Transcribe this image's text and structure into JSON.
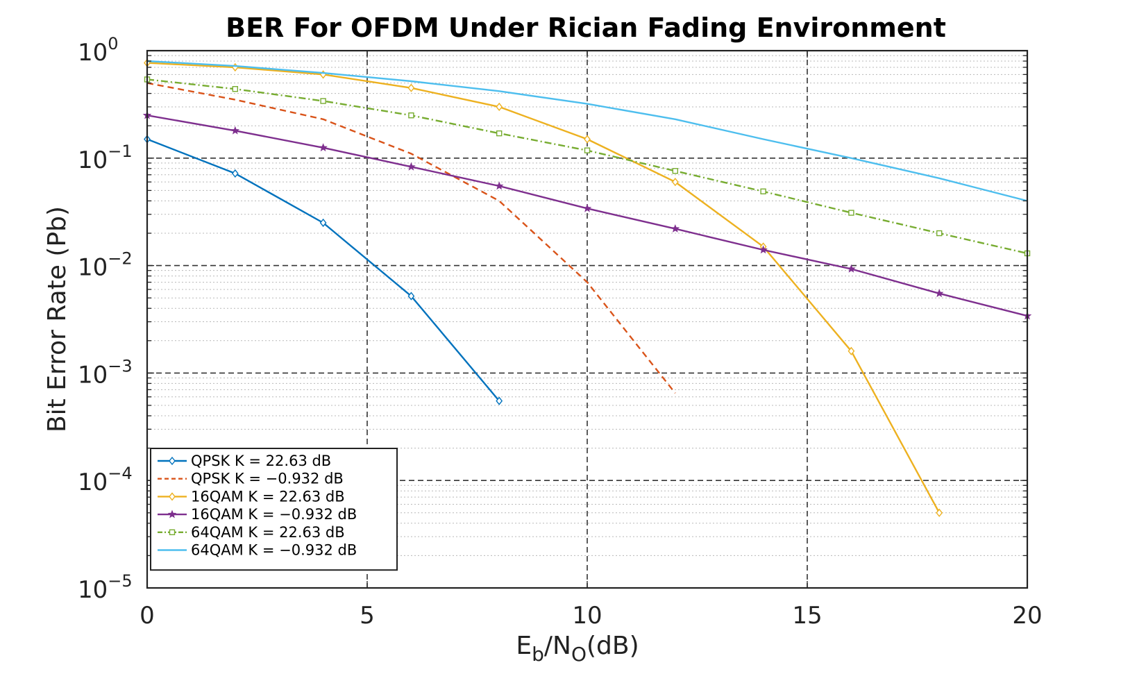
{
  "chart_data": {
    "type": "line",
    "title": "BER For OFDM Under Rician Fading Environment",
    "xlabel": {
      "base1": "E",
      "sub1": "b",
      "mid": "/N",
      "sub2": "O",
      "tail": "(dB)"
    },
    "ylabel": "Bit Error Rate (Pb)",
    "xlim": [
      0,
      20
    ],
    "ylim": [
      1e-05,
      1
    ],
    "yscale": "log",
    "x_ticks": [
      "0",
      "5",
      "10",
      "15",
      "20"
    ],
    "y_ticks": [
      {
        "base": "10",
        "exp": "0"
      },
      {
        "base": "10",
        "exp": "−1"
      },
      {
        "base": "10",
        "exp": "−2"
      },
      {
        "base": "10",
        "exp": "−3"
      },
      {
        "base": "10",
        "exp": "−4"
      },
      {
        "base": "10",
        "exp": "−5"
      }
    ],
    "grid": true,
    "legend_position": "bottom-left",
    "series": [
      {
        "name": "QPSK K = 22.63 dB",
        "color": "#0072BD",
        "dash": "solid",
        "marker": "diamond",
        "x": [
          0,
          2,
          4,
          6,
          8
        ],
        "y": [
          0.15,
          0.072,
          0.025,
          0.0052,
          0.00055
        ]
      },
      {
        "name": "QPSK K = −0.932 dB",
        "color": "#D95319",
        "dash": "dashed",
        "marker": "none",
        "x": [
          0,
          2,
          4,
          6,
          8,
          10,
          12
        ],
        "y": [
          0.5,
          0.35,
          0.23,
          0.11,
          0.04,
          0.007,
          0.00065
        ]
      },
      {
        "name": "16QAM K = 22.63 dB",
        "color": "#EDB120",
        "dash": "solid",
        "marker": "diamond",
        "x": [
          0,
          2,
          4,
          6,
          8,
          10,
          12,
          14,
          16,
          18
        ],
        "y": [
          0.77,
          0.7,
          0.6,
          0.45,
          0.3,
          0.15,
          0.06,
          0.015,
          0.0016,
          5e-05
        ]
      },
      {
        "name": "16QAM K = −0.932 dB",
        "color": "#7E2F8E",
        "dash": "solid",
        "marker": "star",
        "x": [
          0,
          2,
          4,
          6,
          8,
          10,
          12,
          14,
          16,
          18,
          20
        ],
        "y": [
          0.25,
          0.18,
          0.125,
          0.083,
          0.055,
          0.034,
          0.022,
          0.014,
          0.0093,
          0.0055,
          0.0034
        ]
      },
      {
        "name": "64QAM K = 22.63 dB",
        "color": "#77AC30",
        "dash": "dashdot",
        "marker": "square",
        "x": [
          0,
          2,
          4,
          6,
          8,
          10,
          12,
          14,
          16,
          18,
          20
        ],
        "y": [
          0.54,
          0.44,
          0.34,
          0.25,
          0.17,
          0.118,
          0.076,
          0.049,
          0.031,
          0.02,
          0.013
        ]
      },
      {
        "name": "64QAM K = −0.932 dB",
        "color": "#4DBEEE",
        "dash": "solid",
        "marker": "none",
        "x": [
          0,
          2,
          4,
          6,
          8,
          10,
          12,
          14,
          16,
          18,
          20
        ],
        "y": [
          0.8,
          0.72,
          0.62,
          0.52,
          0.42,
          0.32,
          0.23,
          0.15,
          0.1,
          0.065,
          0.04
        ]
      }
    ]
  }
}
